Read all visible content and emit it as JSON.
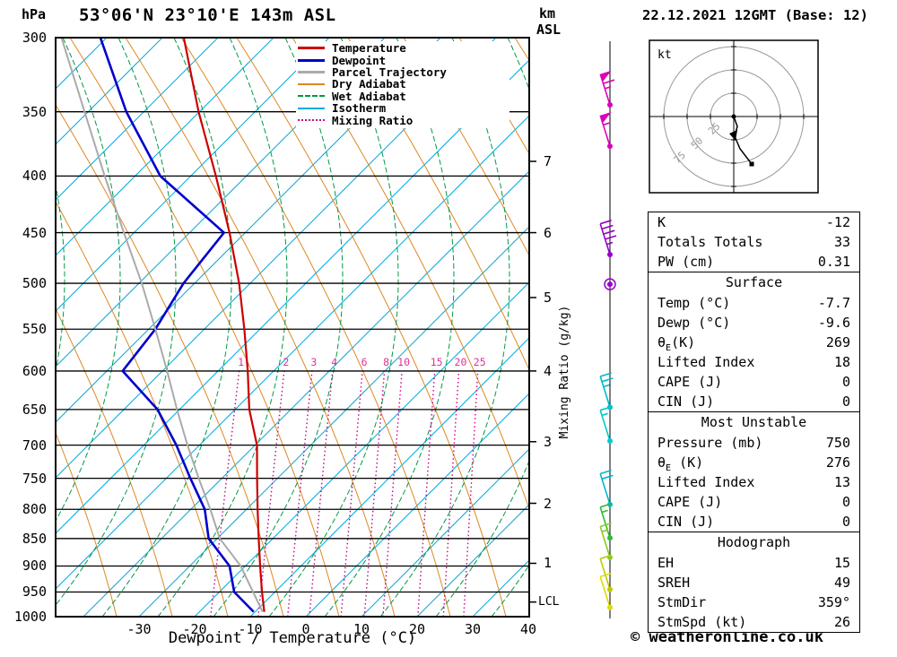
{
  "titles": {
    "main": "53°06'N 23°10'E 143m ASL",
    "date": "22.12.2021 12GMT (Base: 12)"
  },
  "footer": {
    "copyright": "© weatheronline.co.uk"
  },
  "axes": {
    "pressure_unit": "hPa",
    "km": "km",
    "asl": "ASL",
    "x_label": "Dewpoint / Temperature (°C)",
    "mixing_label": "Mixing Ratio (g/kg)",
    "lcl": "LCL"
  },
  "colors": {
    "temperature": "#cc0000",
    "dewpoint": "#0000cc",
    "parcel": "#aaaaaa",
    "dry_adiabat": "#dd8822",
    "wet_adiabat": "#009944",
    "isotherm": "#00aadd",
    "mixing_ratio": "#cc0088",
    "mixing_label": "#dd3399",
    "grid": "#000000"
  },
  "legend": [
    {
      "label": "Temperature",
      "color": "#cc0000",
      "style": "solid",
      "width": 3
    },
    {
      "label": "Dewpoint",
      "color": "#0000cc",
      "style": "solid",
      "width": 3
    },
    {
      "label": "Parcel Trajectory",
      "color": "#aaaaaa",
      "style": "solid",
      "width": 3
    },
    {
      "label": "Dry Adiabat",
      "color": "#dd8822",
      "style": "solid",
      "width": 2
    },
    {
      "label": "Wet Adiabat",
      "color": "#009944",
      "style": "dashed",
      "width": 2
    },
    {
      "label": "Isotherm",
      "color": "#00aadd",
      "style": "solid",
      "width": 2
    },
    {
      "label": "Mixing Ratio",
      "color": "#cc0088",
      "style": "dotted",
      "width": 2
    }
  ],
  "km_levels": [
    {
      "km": "7",
      "p": 388
    },
    {
      "km": "6",
      "p": 450
    },
    {
      "km": "5",
      "p": 515
    },
    {
      "km": "4",
      "p": 600
    },
    {
      "km": "3",
      "p": 695
    },
    {
      "km": "2",
      "p": 790
    },
    {
      "km": "1",
      "p": 895
    }
  ],
  "winds": [
    {
      "p": 345,
      "color": "#dd00bb",
      "speed_kt": 65
    },
    {
      "p": 376,
      "color": "#dd00bb",
      "speed_kt": 55
    },
    {
      "p": 471,
      "color": "#9900cc",
      "speed_kt": 45
    },
    {
      "p": 501,
      "color": "#9900cc",
      "speed_kt": 0
    },
    {
      "p": 647,
      "color": "#00bbcc",
      "speed_kt": 25
    },
    {
      "p": 694,
      "color": "#00cccc",
      "speed_kt": 15
    },
    {
      "p": 792,
      "color": "#00bbcc",
      "speed_kt": 20
    },
    {
      "p": 849,
      "color": "#33bb33",
      "speed_kt": 15
    },
    {
      "p": 884,
      "color": "#88cc22",
      "speed_kt": 15
    },
    {
      "p": 945,
      "color": "#bbcc00",
      "speed_kt": 10
    },
    {
      "p": 981,
      "color": "#dddd00",
      "speed_kt": 10
    }
  ],
  "hodograph": {
    "unit": "kt",
    "rings": [
      25,
      50,
      75
    ],
    "trace": [
      [
        0,
        0
      ],
      [
        4,
        11
      ],
      [
        1,
        22
      ],
      [
        7,
        36
      ],
      [
        20,
        53
      ]
    ],
    "marker": [
      0,
      22
    ]
  },
  "table": {
    "sections": [
      {
        "header": null,
        "rows": [
          [
            "K",
            "-12"
          ],
          [
            "Totals Totals",
            "33"
          ],
          [
            "PW (cm)",
            "0.31"
          ]
        ]
      },
      {
        "header": "Surface",
        "rows": [
          [
            "Temp (°C)",
            "-7.7"
          ],
          [
            "Dewp (°C)",
            "-9.6"
          ],
          [
            "θE(K)",
            "269"
          ],
          [
            "Lifted Index",
            "18"
          ],
          [
            "CAPE (J)",
            "0"
          ],
          [
            "CIN (J)",
            "0"
          ]
        ]
      },
      {
        "header": "Most Unstable",
        "rows": [
          [
            "Pressure (mb)",
            "750"
          ],
          [
            "θE (K)",
            "276"
          ],
          [
            "Lifted Index",
            "13"
          ],
          [
            "CAPE (J)",
            "0"
          ],
          [
            "CIN (J)",
            "0"
          ]
        ]
      },
      {
        "header": "Hodograph",
        "rows": [
          [
            "EH",
            "15"
          ],
          [
            "SREH",
            "49"
          ],
          [
            "StmDir",
            "359°"
          ],
          [
            "StmSpd (kt)",
            "26"
          ]
        ]
      }
    ]
  },
  "chart_data": {
    "type": "line",
    "title": "Skew-T log-P sounding 53°06'N 23°10'E 143m ASL 22.12.2021 12GMT",
    "x_axis": {
      "label": "Dewpoint / Temperature (°C)",
      "ticks": [
        -30,
        -20,
        -10,
        0,
        10,
        20,
        30,
        40
      ],
      "unit": "°C"
    },
    "y_axis": {
      "label": "hPa",
      "ticks": [
        300,
        350,
        400,
        450,
        500,
        550,
        600,
        650,
        700,
        750,
        800,
        850,
        900,
        950,
        1000
      ],
      "scale": "log"
    },
    "mixing_ratio_lines": [
      1,
      2,
      3,
      4,
      6,
      8,
      10,
      15,
      20,
      25
    ],
    "lcl_pressure": 970,
    "series": [
      {
        "name": "Temperature",
        "color": "#cc0000",
        "width": 2.2,
        "points_p_T": [
          [
            990,
            -7.7
          ],
          [
            950,
            -9
          ],
          [
            900,
            -10.5
          ],
          [
            850,
            -12
          ],
          [
            800,
            -13.5
          ],
          [
            750,
            -15
          ],
          [
            700,
            -16.5
          ],
          [
            650,
            -19.5
          ],
          [
            600,
            -21.5
          ],
          [
            550,
            -24
          ],
          [
            500,
            -27
          ],
          [
            450,
            -31
          ],
          [
            400,
            -36
          ],
          [
            350,
            -42
          ],
          [
            300,
            -48
          ]
        ]
      },
      {
        "name": "Dewpoint",
        "color": "#0000cc",
        "width": 2.6,
        "points_p_T": [
          [
            990,
            -9.6
          ],
          [
            950,
            -14
          ],
          [
            900,
            -16
          ],
          [
            850,
            -21
          ],
          [
            800,
            -23
          ],
          [
            750,
            -27
          ],
          [
            700,
            -31
          ],
          [
            650,
            -36
          ],
          [
            600,
            -44
          ],
          [
            550,
            -40
          ],
          [
            500,
            -37
          ],
          [
            450,
            -32
          ],
          [
            400,
            -46
          ],
          [
            350,
            -55
          ],
          [
            300,
            -63
          ]
        ]
      },
      {
        "name": "Parcel Trajectory",
        "color": "#aaaaaa",
        "width": 2,
        "points_p_T": [
          [
            990,
            -8
          ],
          [
            900,
            -14
          ],
          [
            850,
            -19
          ],
          [
            800,
            -22
          ],
          [
            750,
            -25.5
          ],
          [
            700,
            -29
          ],
          [
            650,
            -32.5
          ],
          [
            600,
            -36
          ],
          [
            550,
            -40
          ],
          [
            500,
            -44.5
          ],
          [
            450,
            -50
          ],
          [
            400,
            -56
          ],
          [
            350,
            -62.5
          ],
          [
            300,
            -70
          ]
        ]
      }
    ]
  }
}
